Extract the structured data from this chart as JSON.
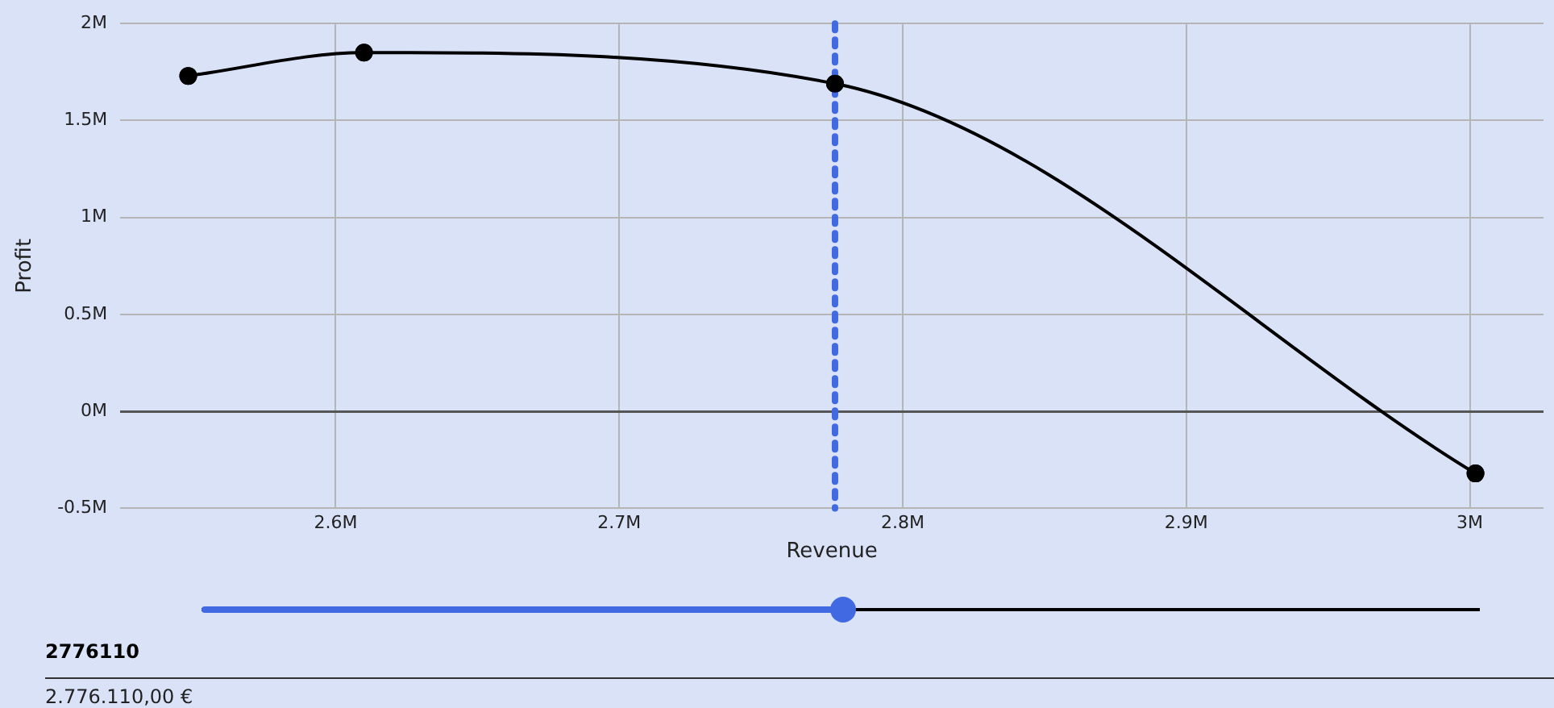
{
  "chart_data": {
    "type": "line",
    "xlabel": "Revenue",
    "ylabel": "Profit",
    "x": [
      2548000,
      2610000,
      2776110,
      3002000
    ],
    "series": [
      {
        "color": "#000000",
        "values": [
          1730000,
          1850000,
          1690000,
          -320000
        ]
      }
    ],
    "xlim": [
      2524000,
      3026000
    ],
    "xticks": [
      {
        "value": 2600000,
        "label": "2.6M"
      },
      {
        "value": 2700000,
        "label": "2.7M"
      },
      {
        "value": 2800000,
        "label": "2.8M"
      },
      {
        "value": 2900000,
        "label": "2.9M"
      },
      {
        "value": 3000000,
        "label": "3M"
      }
    ],
    "ylim": [
      -500000,
      2000000
    ],
    "yticks": [
      {
        "value": -500000,
        "label": "-0.5M"
      },
      {
        "value": 0,
        "label": "0M"
      },
      {
        "value": 500000,
        "label": "0.5M"
      },
      {
        "value": 1000000,
        "label": "1M"
      },
      {
        "value": 1500000,
        "label": "1.5M"
      },
      {
        "value": 2000000,
        "label": "2M"
      }
    ],
    "ref_lines": [
      {
        "axis": "x",
        "value": 2776110,
        "color": "#4169e1",
        "line_style": "dotted"
      }
    ],
    "grid": true,
    "legend": false,
    "marker": "circle",
    "line_style": "solid",
    "annotations": [
      "2776110",
      "2.776.110,00 €"
    ]
  }
}
